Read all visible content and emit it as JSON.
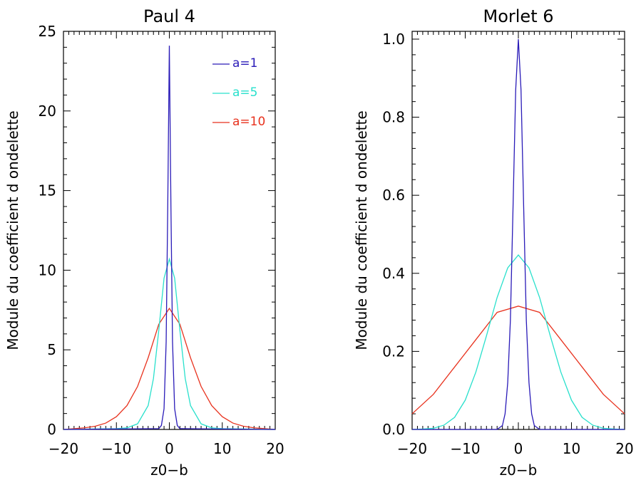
{
  "chart_data": [
    {
      "type": "line",
      "title": "Paul 4",
      "xlabel": "z0−b",
      "ylabel": "Module du coefficient d ondelette",
      "xlim": [
        -20,
        20
      ],
      "ylim": [
        0,
        25
      ],
      "xticks": [
        -20,
        -10,
        0,
        10,
        20
      ],
      "xticklabels": [
        "−20",
        "−10",
        "0",
        "10",
        "20"
      ],
      "yticks": [
        0,
        5,
        10,
        15,
        20,
        25
      ],
      "yticklabels": [
        "0",
        "5",
        "10",
        "15",
        "20",
        "25"
      ],
      "legend_position": "top-right",
      "series": [
        {
          "name": "a=1",
          "color": "#2a1bb8",
          "x": [
            -20,
            -2,
            -1.5,
            -1,
            -0.6,
            -0.3,
            0,
            0.3,
            0.6,
            1,
            1.5,
            2,
            20
          ],
          "y": [
            0,
            0.05,
            0.25,
            1.3,
            5.5,
            14,
            24.1,
            14,
            5.5,
            1.3,
            0.25,
            0.05,
            0
          ]
        },
        {
          "name": "a=5",
          "color": "#29e0cc",
          "x": [
            -20,
            -10,
            -8,
            -6,
            -4,
            -3,
            -2,
            -1,
            0,
            1,
            2,
            3,
            4,
            6,
            8,
            10,
            20
          ],
          "y": [
            0,
            0.05,
            0.1,
            0.35,
            1.5,
            3.2,
            6.2,
            9.5,
            10.7,
            9.5,
            6.2,
            3.2,
            1.5,
            0.35,
            0.1,
            0.05,
            0
          ]
        },
        {
          "name": "a=10",
          "color": "#e8321e",
          "x": [
            -20,
            -16,
            -14,
            -12,
            -10,
            -8,
            -6,
            -4,
            -2,
            0,
            2,
            4,
            6,
            8,
            10,
            12,
            14,
            16,
            20
          ],
          "y": [
            0,
            0.1,
            0.2,
            0.4,
            0.8,
            1.5,
            2.7,
            4.5,
            6.6,
            7.6,
            6.6,
            4.5,
            2.7,
            1.5,
            0.8,
            0.4,
            0.2,
            0.1,
            0
          ]
        }
      ]
    },
    {
      "type": "line",
      "title": "Morlet 6",
      "xlabel": "z0−b",
      "ylabel": "Module du coefficient d ondelette",
      "xlim": [
        -20,
        20
      ],
      "ylim": [
        0,
        1.02
      ],
      "xticks": [
        -20,
        -10,
        0,
        10,
        20
      ],
      "xticklabels": [
        "−20",
        "−10",
        "0",
        "10",
        "20"
      ],
      "yticks": [
        0,
        0.2,
        0.4,
        0.6,
        0.8,
        1.0
      ],
      "yticklabels": [
        "0.0",
        "0.2",
        "0.4",
        "0.6",
        "0.8",
        "1.0"
      ],
      "series": [
        {
          "name": "a=1",
          "color": "#2a1bb8",
          "x": [
            -20,
            -4,
            -3,
            -2.5,
            -2,
            -1.5,
            -1,
            -0.5,
            0,
            0.5,
            1,
            1.5,
            2,
            2.5,
            3,
            4,
            20
          ],
          "y": [
            0,
            0,
            0.01,
            0.04,
            0.12,
            0.28,
            0.57,
            0.87,
            1.0,
            0.87,
            0.57,
            0.28,
            0.12,
            0.04,
            0.01,
            0,
            0
          ]
        },
        {
          "name": "a=5",
          "color": "#29e0cc",
          "x": [
            -20,
            -18,
            -16,
            -14,
            -12,
            -10,
            -8,
            -6,
            -4,
            -2,
            0,
            2,
            4,
            6,
            8,
            10,
            12,
            14,
            16,
            18,
            20
          ],
          "y": [
            0,
            0.001,
            0.003,
            0.011,
            0.031,
            0.075,
            0.147,
            0.24,
            0.338,
            0.414,
            0.447,
            0.414,
            0.338,
            0.24,
            0.147,
            0.075,
            0.031,
            0.011,
            0.003,
            0.001,
            0
          ]
        },
        {
          "name": "a=10",
          "color": "#e8321e",
          "x": [
            -20,
            -16,
            -12,
            -8,
            -4,
            0,
            4,
            8,
            12,
            16,
            20
          ],
          "y": [
            0.04,
            0.09,
            0.16,
            0.23,
            0.3,
            0.316,
            0.3,
            0.23,
            0.16,
            0.09,
            0.04
          ]
        }
      ]
    }
  ]
}
